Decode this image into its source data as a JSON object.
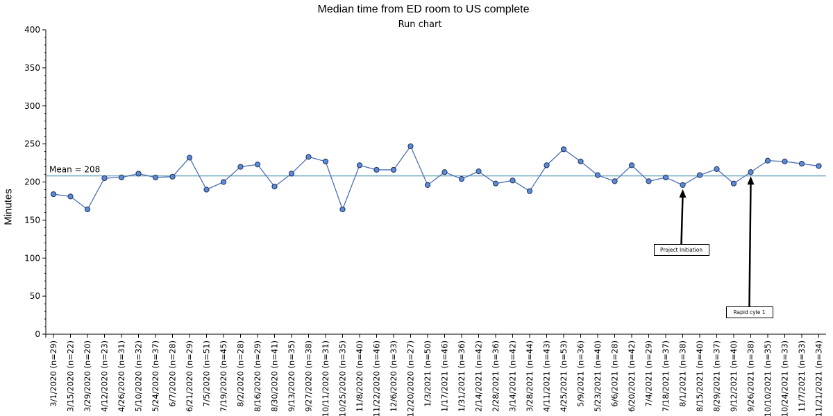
{
  "chart_data": {
    "type": "line",
    "title": "Median time from ED room to US complete",
    "subtitle": "Run chart",
    "ylabel": "Minutes",
    "xlabel": "",
    "ylim": [
      0,
      400
    ],
    "yticks": [
      0,
      50,
      100,
      150,
      200,
      250,
      300,
      350,
      400
    ],
    "categories": [
      "3/1/2020 (n=29)",
      "3/15/2020 (n=22)",
      "3/29/2020 (n=20)",
      "4/12/2020 (n=23)",
      "4/26/2020 (n=31)",
      "5/10/2020 (n=32)",
      "5/24/2020 (n=37)",
      "6/7/2020 (n=28)",
      "6/21/2020 (n=29)",
      "7/5/2020 (n=51)",
      "7/19/2020 (n=45)",
      "8/2/2020 (n=28)",
      "8/16/2020 (n=29)",
      "8/30/2020 (n=41)",
      "9/13/2020 (n=35)",
      "9/27/2020 (n=38)",
      "10/11/2020 (n=31)",
      "10/25/2020 (n=35)",
      "11/8/2020 (n=40)",
      "11/22/2020 (n=46)",
      "12/6/2020 (n=33)",
      "12/20/2020 (n=27)",
      "1/3/2021 (n=50)",
      "1/17/2021 (n=46)",
      "1/31/2021 (n=36)",
      "2/14/2021 (n=42)",
      "2/28/2021 (n=36)",
      "3/14/2021 (n=42)",
      "3/28/2021 (n=44)",
      "4/11/2021 (n=43)",
      "4/25/2021 (n=53)",
      "5/9/2021 (n=36)",
      "5/23/2021 (n=40)",
      "6/6/2021 (n=28)",
      "6/20/2021 (n=42)",
      "7/4/2021 (n=29)",
      "7/18/2021 (n=37)",
      "8/1/2021 (n=38)",
      "8/15/2021 (n=40)",
      "8/29/2021 (n=37)",
      "9/12/2021 (n=40)",
      "9/26/2021 (n=38)",
      "10/10/2021 (n=35)",
      "10/24/2021 (n=33)",
      "11/7/2021 (n=33)",
      "11/21/2021 (n=34)"
    ],
    "series": [
      {
        "values": [
          184,
          181,
          164,
          205,
          206,
          211,
          206,
          207,
          232,
          190,
          200,
          220,
          223,
          194,
          211,
          233,
          227,
          164,
          222,
          216,
          216,
          247,
          196,
          213,
          204,
          214,
          198,
          202,
          188,
          222,
          243,
          227,
          209,
          201,
          222,
          201,
          206,
          196,
          209,
          217,
          198,
          213,
          228,
          227,
          224,
          221
        ],
        "color": "#4a6fb5",
        "marker_fill": "#5b8bd8"
      }
    ],
    "mean_line": {
      "label": "Mean = 208",
      "value": 208,
      "color": "#3f87a8"
    },
    "annotations": [
      {
        "label": "Project Initiation",
        "category_index": 37
      },
      {
        "label": "Rapid cyle 1",
        "category_index": 41
      }
    ],
    "grid": false,
    "legend": "none"
  }
}
